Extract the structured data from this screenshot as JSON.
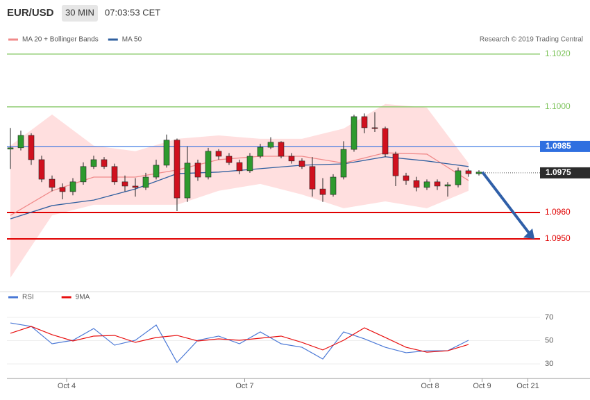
{
  "chart_data": {
    "type": "candlestick",
    "header": {
      "symbol": "EUR/USD",
      "interval": "30 MIN",
      "time": "07:03:53 CET"
    },
    "credit": "Research © 2019 Trading Central",
    "open": [
      1.0984,
      1.09845,
      1.09892,
      1.098,
      1.09726,
      1.09695,
      1.09679,
      1.09716,
      1.09774,
      1.098,
      1.09774,
      1.09716,
      1.097,
      1.09695,
      1.09734,
      1.09779,
      1.09874,
      1.09655,
      1.09787,
      1.09734,
      1.09832,
      1.09813,
      1.09789,
      1.09758,
      1.09813,
      1.09847,
      1.09866,
      1.09813,
      1.09795,
      1.09774,
      1.09689,
      1.09668,
      1.09734,
      1.09839,
      1.09963,
      1.09921,
      1.09918,
      1.09821,
      1.09739,
      1.09721,
      1.09695,
      1.09716,
      1.097,
      1.09705,
      1.09758,
      1.09747
    ],
    "high": [
      1.0992,
      1.0991,
      1.099,
      1.09815,
      1.0974,
      1.0971,
      1.0973,
      1.0979,
      1.09815,
      1.0981,
      1.09785,
      1.0974,
      1.0973,
      1.0975,
      1.098,
      1.09895,
      1.0988,
      1.0985,
      1.098,
      1.09845,
      1.0984,
      1.09825,
      1.098,
      1.09825,
      1.0986,
      1.09885,
      1.0987,
      1.09825,
      1.09805,
      1.0981,
      1.0973,
      1.09745,
      1.0987,
      1.0997,
      1.09975,
      1.0998,
      1.09925,
      1.0983,
      1.0975,
      1.09735,
      1.09725,
      1.09725,
      1.09715,
      1.0977,
      1.09765,
      1.0976
    ],
    "low": [
      1.09765,
      1.09835,
      1.0978,
      1.09715,
      1.0968,
      1.0965,
      1.09665,
      1.09705,
      1.09765,
      1.09765,
      1.09705,
      1.0968,
      1.0966,
      1.09685,
      1.09725,
      1.0977,
      1.09605,
      1.0964,
      1.0972,
      1.09725,
      1.098,
      1.0978,
      1.09745,
      1.0975,
      1.09805,
      1.0984,
      1.09805,
      1.09785,
      1.09765,
      1.0966,
      1.0964,
      1.0966,
      1.09725,
      1.0983,
      1.099,
      1.09905,
      1.0981,
      1.097,
      1.09705,
      1.0968,
      1.09685,
      1.09685,
      1.0966,
      1.09695,
      1.09735,
      1.0974
    ],
    "close": [
      1.09845,
      1.09892,
      1.098,
      1.09726,
      1.09695,
      1.09679,
      1.09716,
      1.09774,
      1.098,
      1.09774,
      1.09716,
      1.097,
      1.09695,
      1.09734,
      1.09779,
      1.09874,
      1.09655,
      1.09787,
      1.09734,
      1.09832,
      1.09813,
      1.09789,
      1.09758,
      1.09813,
      1.09847,
      1.09866,
      1.09813,
      1.09795,
      1.09774,
      1.09689,
      1.09668,
      1.09734,
      1.09839,
      1.09963,
      1.09921,
      1.09918,
      1.09821,
      1.09739,
      1.09721,
      1.09695,
      1.09716,
      1.097,
      1.09705,
      1.09758,
      1.09747,
      1.09753
    ],
    "up_color": "#2e9a2e",
    "down_color": "#d0101e",
    "ylim": [
      1.093,
      1.10247
    ],
    "levels": [
      {
        "value": 1.102,
        "label": "1.1020",
        "color": "#7cc35a",
        "style": "text"
      },
      {
        "value": 1.1,
        "label": "1.1000",
        "color": "#7cc35a",
        "style": "text"
      },
      {
        "value": 1.0985,
        "label": "1.0985",
        "color": "#2f6fe0",
        "style": "box"
      },
      {
        "value": 1.0975,
        "label": "1.0975",
        "color": "#2b2b2b",
        "style": "box"
      },
      {
        "value": 1.096,
        "label": "1.0960",
        "color": "#e00000",
        "style": "text"
      },
      {
        "value": 1.095,
        "label": "1.0950",
        "color": "#e00000",
        "style": "text"
      }
    ],
    "overlay_index": [
      0,
      4,
      8,
      12,
      16,
      20,
      24,
      28,
      32,
      36,
      40,
      44
    ],
    "overlays": [
      {
        "name": "MA 20 + Bollinger Bands",
        "color": "#f08a8a",
        "values": [
          1.09589,
          1.09682,
          1.09734,
          1.09734,
          1.09761,
          1.098,
          1.09813,
          1.09813,
          1.09787,
          1.09826,
          1.09821,
          1.09721
        ],
        "upper": [
          1.09853,
          1.09971,
          1.09853,
          1.09832,
          1.09879,
          1.09892,
          1.09879,
          1.09879,
          1.09918,
          1.10011,
          1.09997,
          1.09787
        ],
        "lower": [
          1.09353,
          1.09589,
          1.09629,
          1.09629,
          1.09629,
          1.09682,
          1.09708,
          1.09668,
          1.09616,
          1.09642,
          1.09616,
          1.09682
        ]
      },
      {
        "name": "MA 50",
        "color": "#2f5f9f",
        "values": [
          1.09576,
          1.09626,
          1.09647,
          1.09689,
          1.09747,
          1.09753,
          1.09766,
          1.09779,
          1.09784,
          1.09811,
          1.09795,
          1.09774
        ]
      }
    ],
    "xticks": [
      {
        "value": 5.4,
        "label": "Oct 4"
      },
      {
        "value": 22.5,
        "label": "Oct 7"
      },
      {
        "value": 40.3,
        "label": "Oct 8"
      },
      {
        "value": 45.3,
        "label": "Oct 9"
      },
      {
        "value": 49.7,
        "label": "Oct 21"
      }
    ],
    "rsi": {
      "type": "line",
      "index": [
        0,
        2,
        4,
        6,
        8,
        10,
        12,
        14,
        16,
        18,
        20,
        22,
        24,
        26,
        28,
        30,
        32,
        34,
        36,
        38,
        40,
        42,
        44
      ],
      "ylim": [
        20.45,
        80.15
      ],
      "yticks": [
        30,
        50,
        70
      ],
      "series": [
        {
          "name": "RSI",
          "color": "#4a78d6",
          "values": [
            65.2,
            62.2,
            47.3,
            50.3,
            60.4,
            46.1,
            50.3,
            63.4,
            31.2,
            50.3,
            53.9,
            47.3,
            57.5,
            47.3,
            44.3,
            34.2,
            57.5,
            51.5,
            44.3,
            39.6,
            41.3,
            41.3,
            50.3
          ]
        },
        {
          "name": "9MA",
          "color": "#e81010",
          "values": [
            56.3,
            62.2,
            55.1,
            49.7,
            53.9,
            54.5,
            48.5,
            52.7,
            54.5,
            49.7,
            51.5,
            50.3,
            52.1,
            53.9,
            48.5,
            42.0,
            50.3,
            61.0,
            52.7,
            44.3,
            40.1,
            41.3,
            46.7
          ]
        }
      ]
    }
  }
}
